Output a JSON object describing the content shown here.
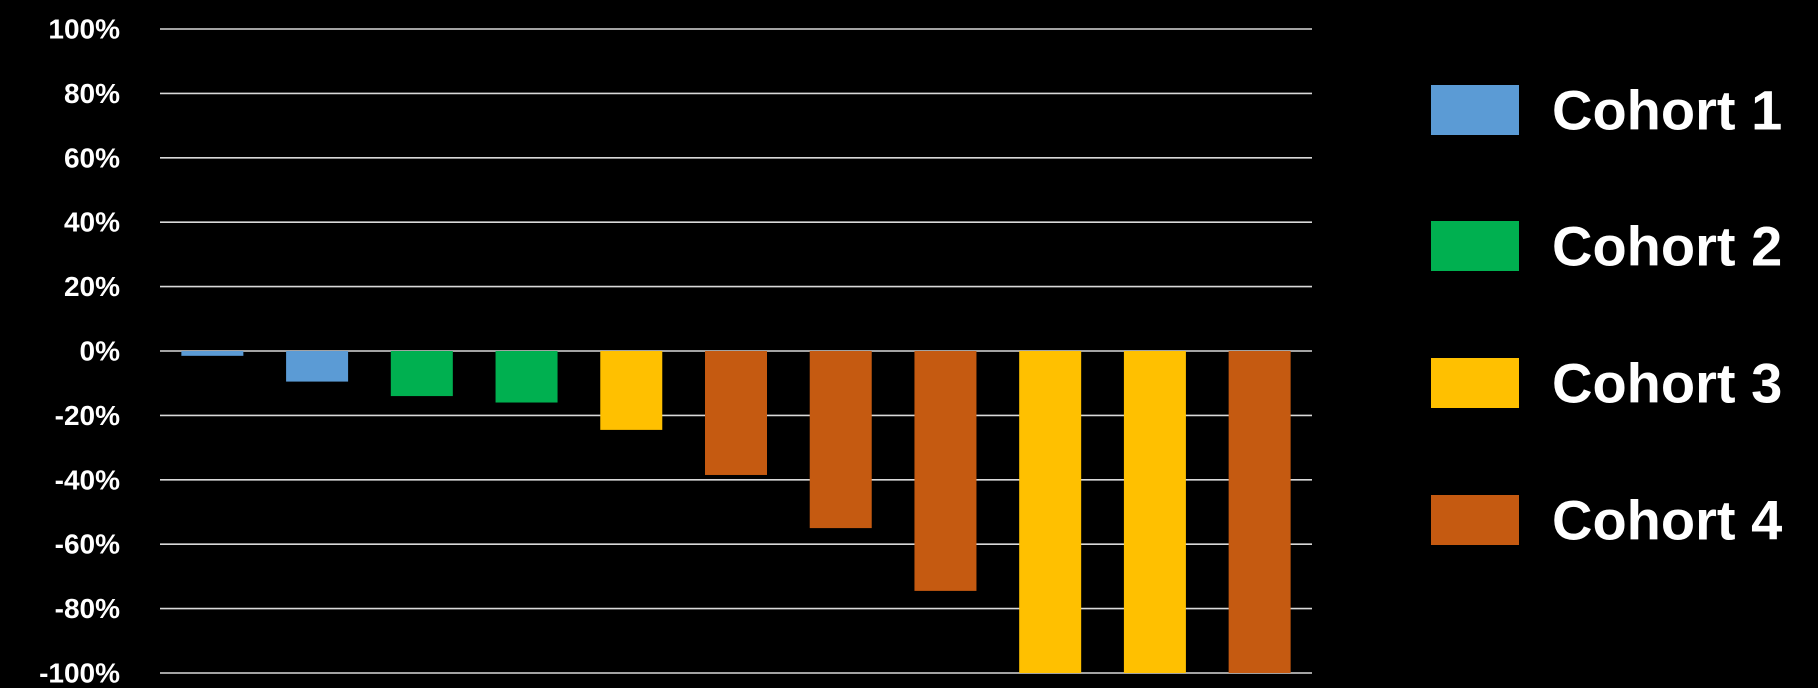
{
  "chart_data": {
    "type": "bar",
    "title": "",
    "xlabel": "",
    "ylabel": "",
    "ylim": [
      -100,
      100
    ],
    "ytick_values": [
      100,
      80,
      60,
      40,
      20,
      0,
      -20,
      -40,
      -60,
      -80,
      -100
    ],
    "ytick_labels": [
      "100%",
      "80%",
      "60%",
      "40%",
      "20%",
      "0%",
      "-20%",
      "-40%",
      "-60%",
      "-80%",
      "-100%"
    ],
    "grid": true,
    "legend_position": "right",
    "series": [
      {
        "name": "Cohort 1",
        "color": "#5b9bd5"
      },
      {
        "name": "Cohort 2",
        "color": "#00b050"
      },
      {
        "name": "Cohort 3",
        "color": "#ffc000"
      },
      {
        "name": "Cohort 4",
        "color": "#c55a11"
      }
    ],
    "bars": [
      {
        "series": "Cohort 1",
        "value": -1.5
      },
      {
        "series": "Cohort 1",
        "value": -9.5
      },
      {
        "series": "Cohort 2",
        "value": -14
      },
      {
        "series": "Cohort 2",
        "value": -16
      },
      {
        "series": "Cohort 3",
        "value": -24.5
      },
      {
        "series": "Cohort 4",
        "value": -38.5
      },
      {
        "series": "Cohort 4",
        "value": -55
      },
      {
        "series": "Cohort 4",
        "value": -74.5
      },
      {
        "series": "Cohort 3",
        "value": -100
      },
      {
        "series": "Cohort 3",
        "value": -100
      },
      {
        "series": "Cohort 4",
        "value": -100
      }
    ]
  }
}
